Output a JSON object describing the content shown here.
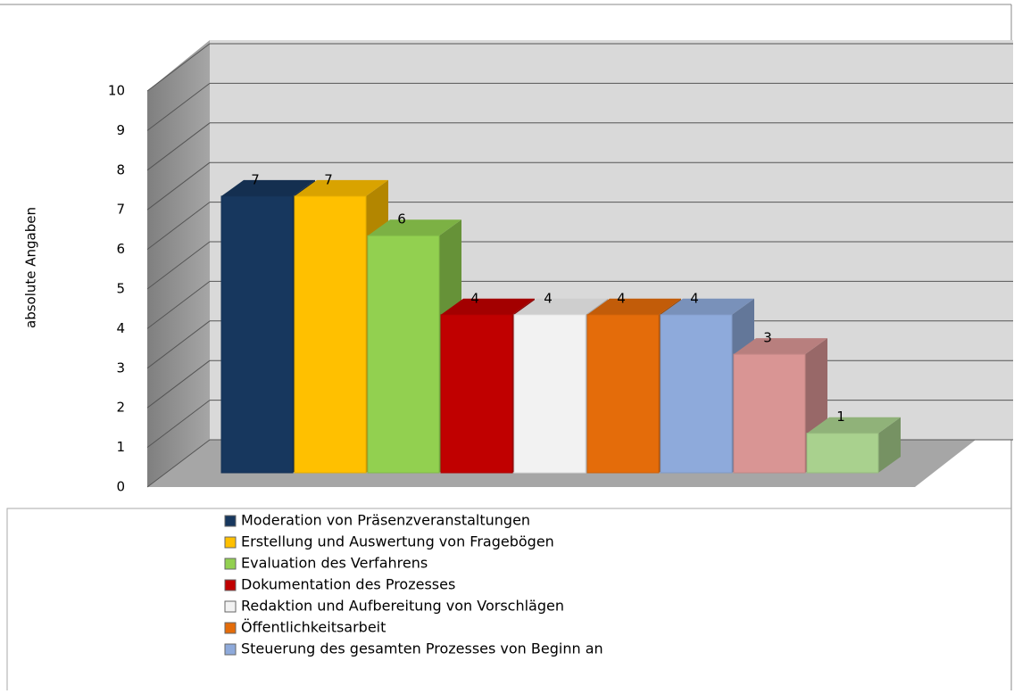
{
  "chart_data": {
    "type": "bar3d",
    "y_label": "absolute Angaben",
    "categories": [
      "Moderation von Präsenzveranstaltungen",
      "Erstellung und Auswertung von Fragebögen",
      "Evaluation des Verfahrens",
      "Dokumentation des Prozesses",
      "Redaktion und Aufbereitung von Vorschlägen",
      "Öffentlichkeitsarbeit",
      "Steuerung des gesamten Prozesses von Beginn an",
      null,
      null
    ],
    "values": [
      7,
      7,
      6,
      4,
      4,
      4,
      4,
      3,
      1
    ],
    "colors": [
      "#17375e",
      "#ffc000",
      "#92d050",
      "#c00000",
      "#f2f2f2",
      "#e46c0a",
      "#8eaadb",
      "#d99594",
      "#a9d18e"
    ],
    "ylim": [
      0,
      10
    ],
    "yticks": [
      0,
      1,
      2,
      3,
      4,
      5,
      6,
      7,
      8,
      9,
      10
    ],
    "grid": true
  }
}
